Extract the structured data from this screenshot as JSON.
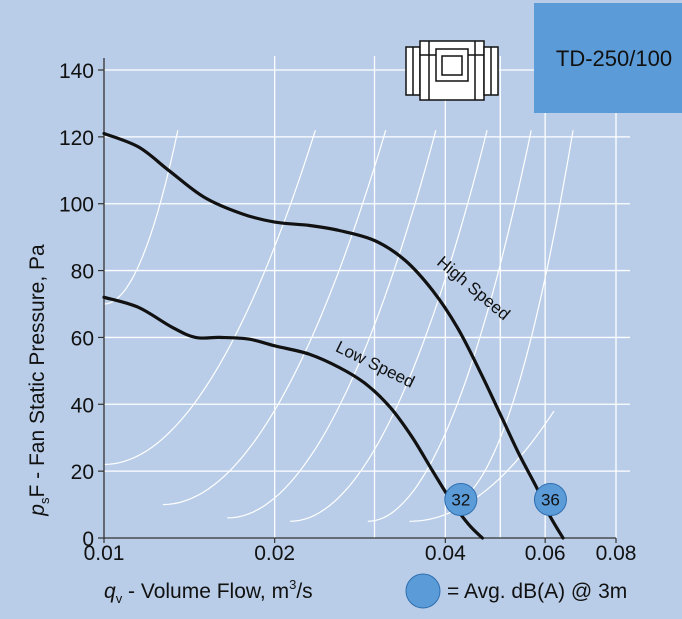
{
  "chart_data": {
    "type": "line",
    "model": "TD-250/100",
    "xlabel": {
      "main": "q",
      "sub": "v",
      "rest": " - Volume Flow, m",
      "sup": "3",
      "tail": "/s"
    },
    "ylabel": {
      "main": "p",
      "sub": "s",
      "rest": "F - Fan Static Pressure, Pa"
    },
    "xscale": "log",
    "xlim": [
      0.01,
      0.08
    ],
    "ylim": [
      0,
      140
    ],
    "x_ticks": [
      {
        "value": 0.01,
        "label": "0.01"
      },
      {
        "value": 0.02,
        "label": "0.02"
      },
      {
        "value": 0.04,
        "label": "0.04"
      },
      {
        "value": 0.06,
        "label": "0.06"
      },
      {
        "value": 0.08,
        "label": "0.08"
      }
    ],
    "x_gridlines": [
      0.01,
      0.02,
      0.03,
      0.04,
      0.05,
      0.06,
      0.08
    ],
    "y_ticks": [
      0,
      20,
      40,
      60,
      80,
      100,
      120,
      140
    ],
    "grid": true,
    "series": [
      {
        "name": "High Speed",
        "points": [
          [
            0.01,
            121
          ],
          [
            0.0115,
            117
          ],
          [
            0.013,
            110
          ],
          [
            0.015,
            102
          ],
          [
            0.0175,
            97
          ],
          [
            0.02,
            94.5
          ],
          [
            0.023,
            93.5
          ],
          [
            0.026,
            92
          ],
          [
            0.03,
            89
          ],
          [
            0.034,
            83
          ],
          [
            0.038,
            74
          ],
          [
            0.042,
            63
          ],
          [
            0.046,
            50
          ],
          [
            0.05,
            37
          ],
          [
            0.054,
            25
          ],
          [
            0.058,
            15
          ],
          [
            0.061,
            7
          ],
          [
            0.0645,
            0
          ]
        ]
      },
      {
        "name": "Low Speed",
        "points": [
          [
            0.01,
            72
          ],
          [
            0.0115,
            69
          ],
          [
            0.0132,
            63
          ],
          [
            0.0145,
            60
          ],
          [
            0.016,
            60
          ],
          [
            0.018,
            59.5
          ],
          [
            0.02,
            57.5
          ],
          [
            0.023,
            55
          ],
          [
            0.026,
            51
          ],
          [
            0.029,
            46
          ],
          [
            0.032,
            39
          ],
          [
            0.035,
            30
          ],
          [
            0.038,
            20
          ],
          [
            0.041,
            11
          ],
          [
            0.044,
            4
          ],
          [
            0.0465,
            0
          ]
        ]
      }
    ],
    "system_curves": [
      {
        "from": [
          0.01,
          70
        ],
        "to": [
          0.0135,
          122
        ]
      },
      {
        "from": [
          0.01,
          22
        ],
        "to": [
          0.0236,
          122
        ]
      },
      {
        "from": [
          0.0127,
          10
        ],
        "to": [
          0.0314,
          122
        ]
      },
      {
        "from": [
          0.0165,
          6
        ],
        "to": [
          0.0385,
          122
        ]
      },
      {
        "from": [
          0.0213,
          5
        ],
        "to": [
          0.0474,
          122
        ]
      },
      {
        "from": [
          0.0292,
          5
        ],
        "to": [
          0.0567,
          122
        ]
      },
      {
        "from": [
          0.0403,
          10
        ],
        "to": [
          0.0672,
          122
        ]
      },
      {
        "from": [
          0.0346,
          5
        ],
        "to": [
          0.0622,
          38
        ]
      }
    ],
    "markers": [
      {
        "x": 0.0426,
        "y": 11.5,
        "label": "32",
        "series": "Low Speed"
      },
      {
        "x": 0.0613,
        "y": 11.5,
        "label": "36",
        "series": "High Speed"
      }
    ],
    "marker_legend": {
      "text": "= Avg. dB(A) @ 3m"
    }
  },
  "colors": {
    "background": "#b9cde8",
    "grid": "#ffffff",
    "curve": "#111111",
    "marker_fill": "#5b9bd8",
    "model_box": "#5b9bd8",
    "axis": "#333333"
  },
  "icon": "inline-duct-fan-icon"
}
